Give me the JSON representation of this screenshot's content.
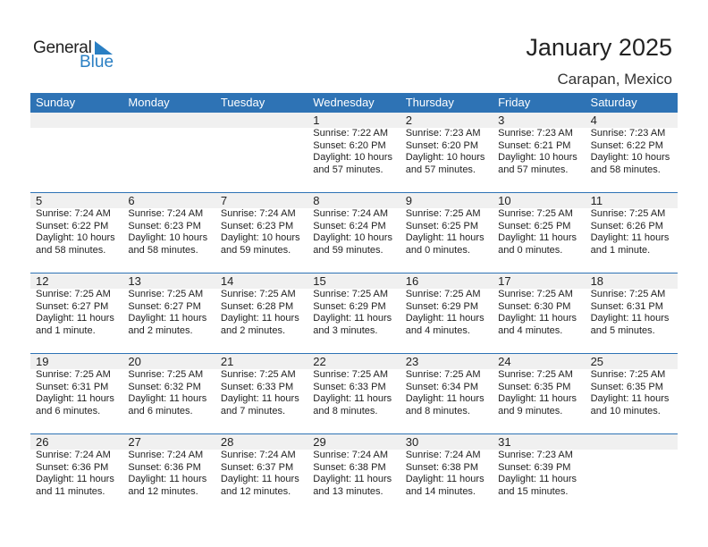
{
  "logo": {
    "text1": "General",
    "text2": "Blue"
  },
  "title": "January 2025",
  "location": "Carapan, Mexico",
  "weekdays": [
    "Sunday",
    "Monday",
    "Tuesday",
    "Wednesday",
    "Thursday",
    "Friday",
    "Saturday"
  ],
  "weeks": [
    [
      null,
      null,
      null,
      {
        "day": "1",
        "sunrise": "Sunrise: 7:22 AM",
        "sunset": "Sunset: 6:20 PM",
        "daylight1": "Daylight: 10 hours",
        "daylight2": "and 57 minutes."
      },
      {
        "day": "2",
        "sunrise": "Sunrise: 7:23 AM",
        "sunset": "Sunset: 6:20 PM",
        "daylight1": "Daylight: 10 hours",
        "daylight2": "and 57 minutes."
      },
      {
        "day": "3",
        "sunrise": "Sunrise: 7:23 AM",
        "sunset": "Sunset: 6:21 PM",
        "daylight1": "Daylight: 10 hours",
        "daylight2": "and 57 minutes."
      },
      {
        "day": "4",
        "sunrise": "Sunrise: 7:23 AM",
        "sunset": "Sunset: 6:22 PM",
        "daylight1": "Daylight: 10 hours",
        "daylight2": "and 58 minutes."
      }
    ],
    [
      {
        "day": "5",
        "sunrise": "Sunrise: 7:24 AM",
        "sunset": "Sunset: 6:22 PM",
        "daylight1": "Daylight: 10 hours",
        "daylight2": "and 58 minutes."
      },
      {
        "day": "6",
        "sunrise": "Sunrise: 7:24 AM",
        "sunset": "Sunset: 6:23 PM",
        "daylight1": "Daylight: 10 hours",
        "daylight2": "and 58 minutes."
      },
      {
        "day": "7",
        "sunrise": "Sunrise: 7:24 AM",
        "sunset": "Sunset: 6:23 PM",
        "daylight1": "Daylight: 10 hours",
        "daylight2": "and 59 minutes."
      },
      {
        "day": "8",
        "sunrise": "Sunrise: 7:24 AM",
        "sunset": "Sunset: 6:24 PM",
        "daylight1": "Daylight: 10 hours",
        "daylight2": "and 59 minutes."
      },
      {
        "day": "9",
        "sunrise": "Sunrise: 7:25 AM",
        "sunset": "Sunset: 6:25 PM",
        "daylight1": "Daylight: 11 hours",
        "daylight2": "and 0 minutes."
      },
      {
        "day": "10",
        "sunrise": "Sunrise: 7:25 AM",
        "sunset": "Sunset: 6:25 PM",
        "daylight1": "Daylight: 11 hours",
        "daylight2": "and 0 minutes."
      },
      {
        "day": "11",
        "sunrise": "Sunrise: 7:25 AM",
        "sunset": "Sunset: 6:26 PM",
        "daylight1": "Daylight: 11 hours",
        "daylight2": "and 1 minute."
      }
    ],
    [
      {
        "day": "12",
        "sunrise": "Sunrise: 7:25 AM",
        "sunset": "Sunset: 6:27 PM",
        "daylight1": "Daylight: 11 hours",
        "daylight2": "and 1 minute."
      },
      {
        "day": "13",
        "sunrise": "Sunrise: 7:25 AM",
        "sunset": "Sunset: 6:27 PM",
        "daylight1": "Daylight: 11 hours",
        "daylight2": "and 2 minutes."
      },
      {
        "day": "14",
        "sunrise": "Sunrise: 7:25 AM",
        "sunset": "Sunset: 6:28 PM",
        "daylight1": "Daylight: 11 hours",
        "daylight2": "and 2 minutes."
      },
      {
        "day": "15",
        "sunrise": "Sunrise: 7:25 AM",
        "sunset": "Sunset: 6:29 PM",
        "daylight1": "Daylight: 11 hours",
        "daylight2": "and 3 minutes."
      },
      {
        "day": "16",
        "sunrise": "Sunrise: 7:25 AM",
        "sunset": "Sunset: 6:29 PM",
        "daylight1": "Daylight: 11 hours",
        "daylight2": "and 4 minutes."
      },
      {
        "day": "17",
        "sunrise": "Sunrise: 7:25 AM",
        "sunset": "Sunset: 6:30 PM",
        "daylight1": "Daylight: 11 hours",
        "daylight2": "and 4 minutes."
      },
      {
        "day": "18",
        "sunrise": "Sunrise: 7:25 AM",
        "sunset": "Sunset: 6:31 PM",
        "daylight1": "Daylight: 11 hours",
        "daylight2": "and 5 minutes."
      }
    ],
    [
      {
        "day": "19",
        "sunrise": "Sunrise: 7:25 AM",
        "sunset": "Sunset: 6:31 PM",
        "daylight1": "Daylight: 11 hours",
        "daylight2": "and 6 minutes."
      },
      {
        "day": "20",
        "sunrise": "Sunrise: 7:25 AM",
        "sunset": "Sunset: 6:32 PM",
        "daylight1": "Daylight: 11 hours",
        "daylight2": "and 6 minutes."
      },
      {
        "day": "21",
        "sunrise": "Sunrise: 7:25 AM",
        "sunset": "Sunset: 6:33 PM",
        "daylight1": "Daylight: 11 hours",
        "daylight2": "and 7 minutes."
      },
      {
        "day": "22",
        "sunrise": "Sunrise: 7:25 AM",
        "sunset": "Sunset: 6:33 PM",
        "daylight1": "Daylight: 11 hours",
        "daylight2": "and 8 minutes."
      },
      {
        "day": "23",
        "sunrise": "Sunrise: 7:25 AM",
        "sunset": "Sunset: 6:34 PM",
        "daylight1": "Daylight: 11 hours",
        "daylight2": "and 8 minutes."
      },
      {
        "day": "24",
        "sunrise": "Sunrise: 7:25 AM",
        "sunset": "Sunset: 6:35 PM",
        "daylight1": "Daylight: 11 hours",
        "daylight2": "and 9 minutes."
      },
      {
        "day": "25",
        "sunrise": "Sunrise: 7:25 AM",
        "sunset": "Sunset: 6:35 PM",
        "daylight1": "Daylight: 11 hours",
        "daylight2": "and 10 minutes."
      }
    ],
    [
      {
        "day": "26",
        "sunrise": "Sunrise: 7:24 AM",
        "sunset": "Sunset: 6:36 PM",
        "daylight1": "Daylight: 11 hours",
        "daylight2": "and 11 minutes."
      },
      {
        "day": "27",
        "sunrise": "Sunrise: 7:24 AM",
        "sunset": "Sunset: 6:36 PM",
        "daylight1": "Daylight: 11 hours",
        "daylight2": "and 12 minutes."
      },
      {
        "day": "28",
        "sunrise": "Sunrise: 7:24 AM",
        "sunset": "Sunset: 6:37 PM",
        "daylight1": "Daylight: 11 hours",
        "daylight2": "and 12 minutes."
      },
      {
        "day": "29",
        "sunrise": "Sunrise: 7:24 AM",
        "sunset": "Sunset: 6:38 PM",
        "daylight1": "Daylight: 11 hours",
        "daylight2": "and 13 minutes."
      },
      {
        "day": "30",
        "sunrise": "Sunrise: 7:24 AM",
        "sunset": "Sunset: 6:38 PM",
        "daylight1": "Daylight: 11 hours",
        "daylight2": "and 14 minutes."
      },
      {
        "day": "31",
        "sunrise": "Sunrise: 7:23 AM",
        "sunset": "Sunset: 6:39 PM",
        "daylight1": "Daylight: 11 hours",
        "daylight2": "and 15 minutes."
      },
      null
    ]
  ],
  "colors": {
    "header": "#2e73b5",
    "logo_blue": "#2a7fc3",
    "date_strip": "#f0f0f0"
  }
}
